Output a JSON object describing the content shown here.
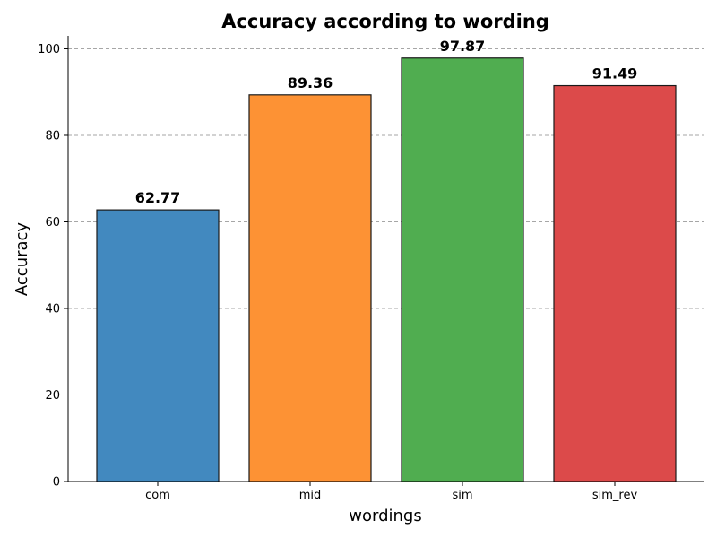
{
  "chart_data": {
    "type": "bar",
    "title": "Accuracy according to wording",
    "xlabel": "wordings",
    "ylabel": "Accuracy",
    "categories": [
      "com",
      "mid",
      "sim",
      "sim_rev"
    ],
    "values": [
      62.77,
      89.36,
      97.87,
      91.49
    ],
    "value_labels": [
      "62.77",
      "89.36",
      "97.87",
      "91.49"
    ],
    "colors": [
      "#4289bf",
      "#fd9234",
      "#50ad50",
      "#dc4a4a"
    ],
    "ylim": [
      0,
      103
    ],
    "yticks": [
      0,
      20,
      40,
      60,
      80,
      100
    ],
    "grid": "y-dashed",
    "legend": "none"
  }
}
